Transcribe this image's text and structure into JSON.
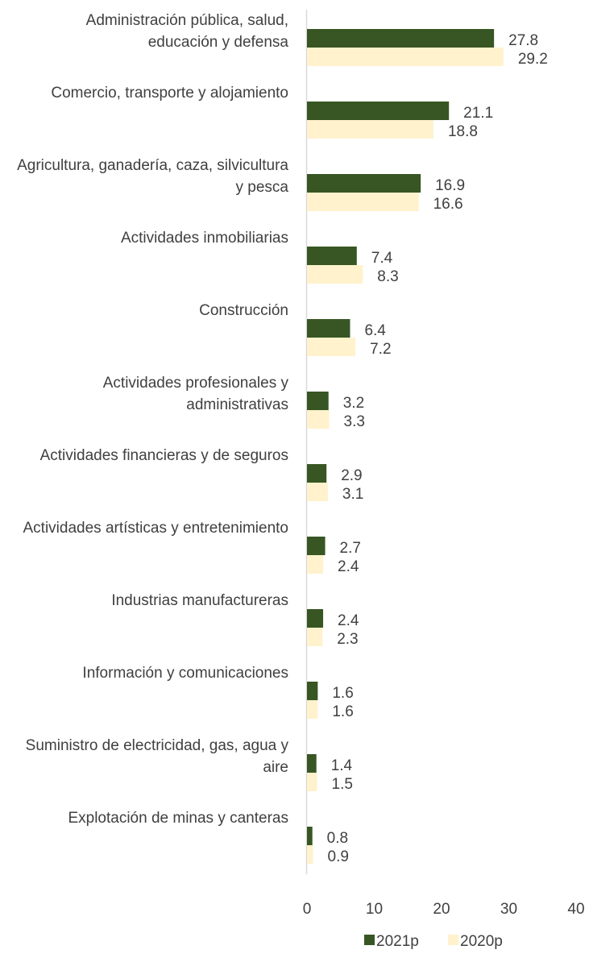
{
  "chart_data": {
    "type": "bar",
    "orientation": "horizontal",
    "categories": [
      [
        "Administración pública, salud,",
        "educación y defensa"
      ],
      [
        "Comercio, transporte y alojamiento"
      ],
      [
        "Agricultura, ganadería, caza, silvicultura",
        "y pesca"
      ],
      [
        "Actividades inmobiliarias"
      ],
      [
        "Construcción"
      ],
      [
        "Actividades profesionales y",
        "administrativas"
      ],
      [
        "Actividades financieras y de seguros"
      ],
      [
        "Actividades artísticas y entretenimiento"
      ],
      [
        "Industrias manufactureras"
      ],
      [
        "Información y comunicaciones"
      ],
      [
        "Suministro de electricidad, gas, agua y",
        "aire"
      ],
      [
        "Explotación de minas y canteras"
      ]
    ],
    "series": [
      {
        "name": "2021p",
        "color": "#375623",
        "values": [
          27.8,
          21.1,
          16.9,
          7.4,
          6.4,
          3.2,
          2.9,
          2.7,
          2.4,
          1.6,
          1.4,
          0.8
        ],
        "labels": [
          "27.8",
          "21.1",
          "16.9",
          "7.4",
          "6.4",
          "3.2",
          "2.9",
          "2.7",
          "2.4",
          "1.6",
          "1.4",
          "0.8"
        ]
      },
      {
        "name": "2020p",
        "color": "#FFF2CC",
        "values": [
          29.2,
          18.8,
          16.6,
          8.3,
          7.2,
          3.3,
          3.1,
          2.4,
          2.3,
          1.6,
          1.5,
          0.9
        ],
        "labels": [
          "29.2",
          "18.8",
          "16.6",
          "8.3",
          "7.2",
          "3.3",
          "3.1",
          "2.4",
          "2.3",
          "1.6",
          "1.5",
          "0.9"
        ]
      }
    ],
    "xlim": [
      0,
      40
    ],
    "xticks": [
      "0",
      "10",
      "20",
      "30",
      "40"
    ],
    "grid": false,
    "legend_position": "bottom"
  }
}
